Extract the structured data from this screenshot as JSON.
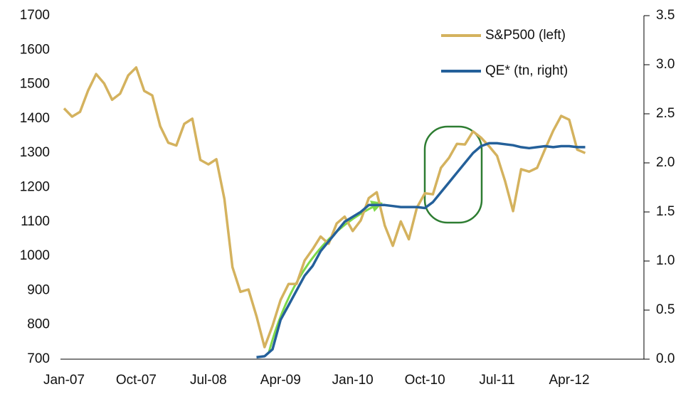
{
  "chart_data": {
    "type": "line",
    "categories": [
      "Jan-07",
      null,
      null,
      null,
      null,
      null,
      null,
      null,
      null,
      "Oct-07",
      null,
      null,
      null,
      null,
      null,
      null,
      null,
      null,
      "Jul-08",
      null,
      null,
      null,
      null,
      null,
      null,
      null,
      null,
      "Apr-09",
      null,
      null,
      null,
      null,
      null,
      null,
      null,
      null,
      "Jan-10",
      null,
      null,
      null,
      null,
      null,
      null,
      null,
      null,
      "Oct-10",
      null,
      null,
      null,
      null,
      null,
      null,
      null,
      null,
      "Jul-11",
      null,
      null,
      null,
      null,
      null,
      null,
      null,
      null,
      "Apr-12",
      null,
      null
    ],
    "series": [
      {
        "name": "S&P500 (left)",
        "color": "#d4b25e",
        "values": [
          1430,
          1406,
          1420,
          1482,
          1530,
          1503,
          1455,
          1473,
          1526,
          1549,
          1481,
          1468,
          1378,
          1330,
          1322,
          1385,
          1400,
          1280,
          1267,
          1282,
          1166,
          968,
          896,
          903,
          825,
          735,
          797,
          872,
          919,
          919,
          987,
          1020,
          1057,
          1036,
          1095,
          1115,
          1073,
          1104,
          1169,
          1186,
          1089,
          1030,
          1101,
          1049,
          1141,
          1183,
          1180,
          1257,
          1286,
          1327,
          1325,
          1363,
          1345,
          1320,
          1292,
          1218,
          1131,
          1253,
          1246,
          1257,
          1312,
          1365,
          1408,
          1397,
          1310,
          1300
        ]
      },
      {
        "name": "QE* (tn, right)",
        "color": "#24609a",
        "axis": "y2",
        "values": [
          null,
          null,
          null,
          null,
          null,
          null,
          null,
          null,
          null,
          null,
          null,
          null,
          null,
          null,
          null,
          null,
          null,
          null,
          null,
          null,
          null,
          null,
          null,
          null,
          0.02,
          0.03,
          0.1,
          0.4,
          0.55,
          0.7,
          0.85,
          0.95,
          1.1,
          1.2,
          1.3,
          1.4,
          1.45,
          1.5,
          1.57,
          1.57,
          1.57,
          1.56,
          1.55,
          1.55,
          1.55,
          1.54,
          1.6,
          1.7,
          1.8,
          1.9,
          2.0,
          2.1,
          2.17,
          2.2,
          2.2,
          2.19,
          2.18,
          2.16,
          2.15,
          2.16,
          2.17,
          2.16,
          2.17,
          2.17,
          2.16,
          2.16
        ]
      }
    ],
    "ylim": [
      700,
      1700
    ],
    "yticks": [
      700,
      800,
      900,
      1000,
      1100,
      1200,
      1300,
      1400,
      1500,
      1600,
      1700
    ],
    "y2lim": [
      0,
      3.5
    ],
    "y2ticks": [
      {
        "value": 0,
        "label": "0.0"
      },
      0.5,
      {
        "value": 1,
        "label": "1.0"
      },
      1.5,
      {
        "value": 2,
        "label": "2.0"
      },
      2.5,
      {
        "value": 3,
        "label": "3.0"
      },
      3.5
    ]
  }
}
